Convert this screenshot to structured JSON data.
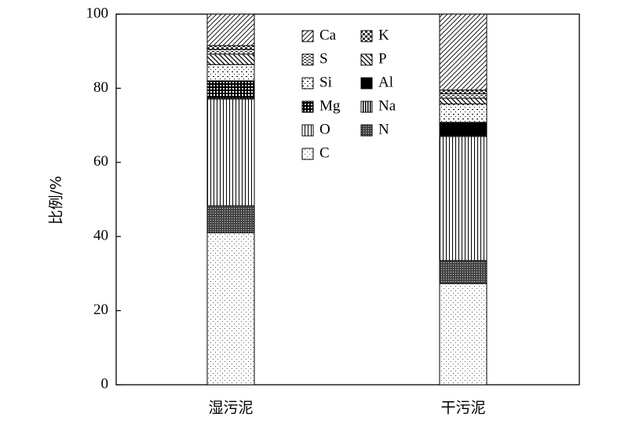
{
  "chart_data": {
    "type": "stacked_bar",
    "y_label": "比例/%",
    "categories": [
      "湿污泥",
      "干污泥"
    ],
    "series": [
      {
        "name": "C",
        "values": [
          41,
          27.3
        ]
      },
      {
        "name": "N",
        "values": [
          7.3,
          6.2
        ]
      },
      {
        "name": "O",
        "values": [
          28.8,
          33.5
        ]
      },
      {
        "name": "Na",
        "values": [
          0.3,
          0.3
        ]
      },
      {
        "name": "Mg",
        "values": [
          4.4,
          0.5
        ]
      },
      {
        "name": "Al",
        "values": [
          0.2,
          3
        ]
      },
      {
        "name": "Si",
        "values": [
          4.4,
          5
        ]
      },
      {
        "name": "P",
        "values": [
          2.8,
          1.5
        ]
      },
      {
        "name": "S",
        "values": [
          1.3,
          1.2
        ]
      },
      {
        "name": "K",
        "values": [
          1,
          1
        ]
      },
      {
        "name": "Ca",
        "values": [
          8.5,
          20.5
        ]
      }
    ],
    "ylim": [
      0,
      100
    ],
    "yticks": [
      0,
      20,
      40,
      60,
      80,
      100
    ]
  }
}
